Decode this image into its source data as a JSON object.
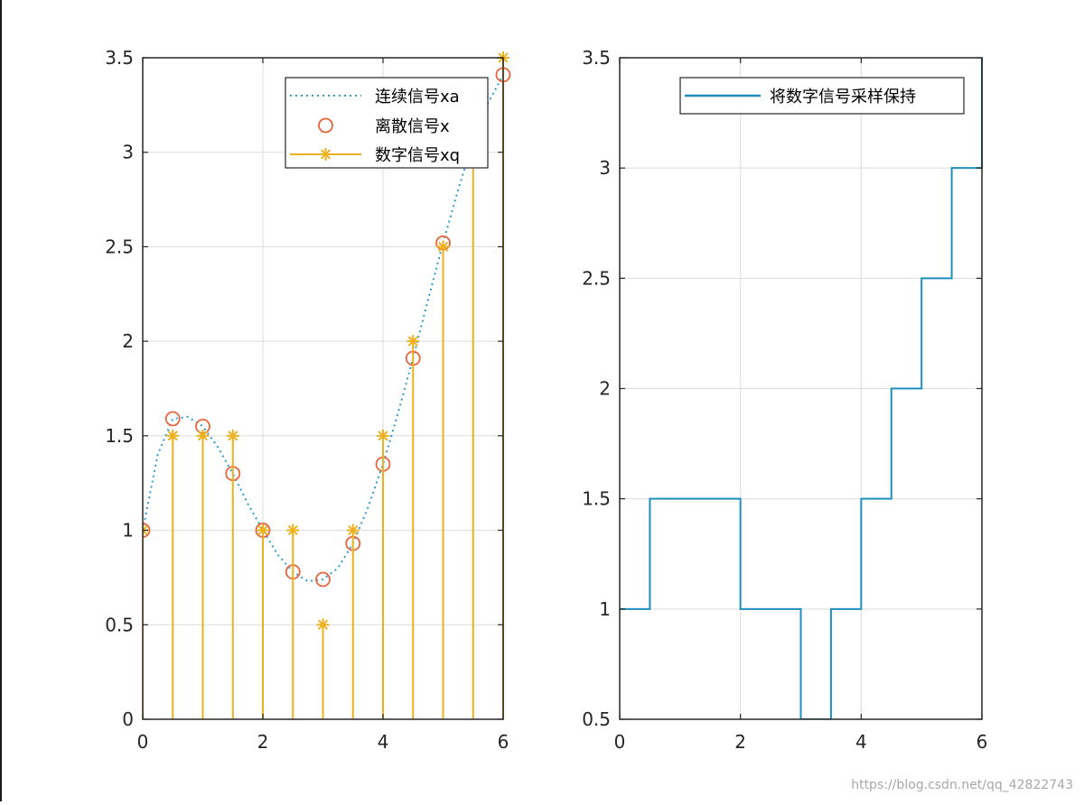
{
  "chart_data": [
    {
      "type": "line",
      "xlim": [
        0,
        6
      ],
      "ylim": [
        0,
        3.5
      ],
      "xticks": [
        0,
        2,
        4,
        6
      ],
      "yticks": [
        0,
        0.5,
        1,
        1.5,
        2,
        2.5,
        3,
        3.5
      ],
      "grid": true,
      "legend_position": "top-right",
      "series": [
        {
          "name": "连续信号xa",
          "style": "dotted",
          "color": "#2E9AD0",
          "x": [
            0,
            0.25,
            0.5,
            0.75,
            1,
            1.25,
            1.5,
            1.75,
            2,
            2.25,
            2.5,
            2.75,
            3,
            3.25,
            3.5,
            3.75,
            4,
            4.25,
            4.5,
            4.75,
            5,
            5.25,
            5.5,
            5.75,
            6
          ],
          "y": [
            1.0,
            1.4,
            1.59,
            1.6,
            1.55,
            1.44,
            1.3,
            1.14,
            1.0,
            0.87,
            0.78,
            0.73,
            0.74,
            0.8,
            0.93,
            1.12,
            1.35,
            1.62,
            1.91,
            2.22,
            2.52,
            2.8,
            3.06,
            3.26,
            3.41
          ]
        },
        {
          "name": "离散信号x",
          "style": "circle",
          "color": "#E8643C",
          "x": [
            0,
            0.5,
            1,
            1.5,
            2,
            2.5,
            3,
            3.5,
            4,
            4.5,
            5,
            5.5,
            6
          ],
          "y": [
            1.0,
            1.59,
            1.55,
            1.3,
            1.0,
            0.78,
            0.74,
            0.93,
            1.35,
            1.91,
            2.52,
            3.06,
            3.41
          ]
        },
        {
          "name": "数字信号xq",
          "style": "stem-asterisk",
          "color": "#EDB120",
          "x": [
            0,
            0.5,
            1,
            1.5,
            2,
            2.5,
            3,
            3.5,
            4,
            4.5,
            5,
            5.5,
            6
          ],
          "y": [
            1.0,
            1.5,
            1.5,
            1.5,
            1.0,
            1.0,
            0.5,
            1.0,
            1.5,
            2.0,
            2.5,
            3.0,
            3.5
          ]
        }
      ]
    },
    {
      "type": "line",
      "xlim": [
        0,
        6
      ],
      "ylim": [
        0.5,
        3.5
      ],
      "xticks": [
        0,
        2,
        4,
        6
      ],
      "yticks": [
        0.5,
        1,
        1.5,
        2,
        2.5,
        3,
        3.5
      ],
      "grid": true,
      "legend_position": "top-right",
      "series": [
        {
          "name": "将数字信号采样保持",
          "style": "stairs",
          "color": "#1F8FBF",
          "x": [
            0,
            0.5,
            1,
            1.5,
            2,
            2.5,
            3,
            3.5,
            4,
            4.5,
            5,
            5.5,
            6
          ],
          "y": [
            1.0,
            1.5,
            1.5,
            1.5,
            1.0,
            1.0,
            0.5,
            1.0,
            1.5,
            2.0,
            2.5,
            3.0,
            3.5
          ]
        }
      ]
    }
  ],
  "watermark": "https://blog.csdn.net/qq_42822743"
}
